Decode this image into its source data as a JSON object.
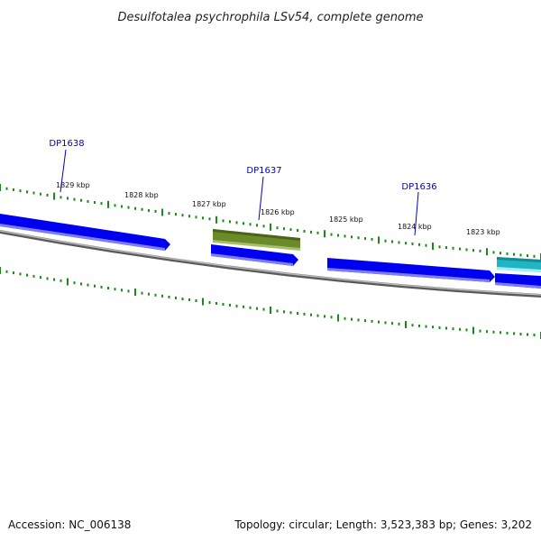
{
  "title": "Desulfotalea psychrophila LSv54, complete genome",
  "footer": {
    "accession": "Accession: NC_006138",
    "summary": "Topology: circular; Length: 3,523,383 bp; Genes: 3,202"
  },
  "colors": {
    "backbone": "#7a7a7a",
    "cds": "#0000f0",
    "cds_highlight": "#6b8a2a",
    "cds_other": "#1fb5c2",
    "ticks": "#1a8a1a",
    "gene_label": "#0000cc"
  },
  "tick_labels": [
    "1829 kbp",
    "1828 kbp",
    "1827 kbp",
    "1826 kbp",
    "1825 kbp",
    "1824 kbp",
    "1823 kbp"
  ],
  "gene_labels": [
    "DP1638",
    "DP1637",
    "DP1636"
  ]
}
